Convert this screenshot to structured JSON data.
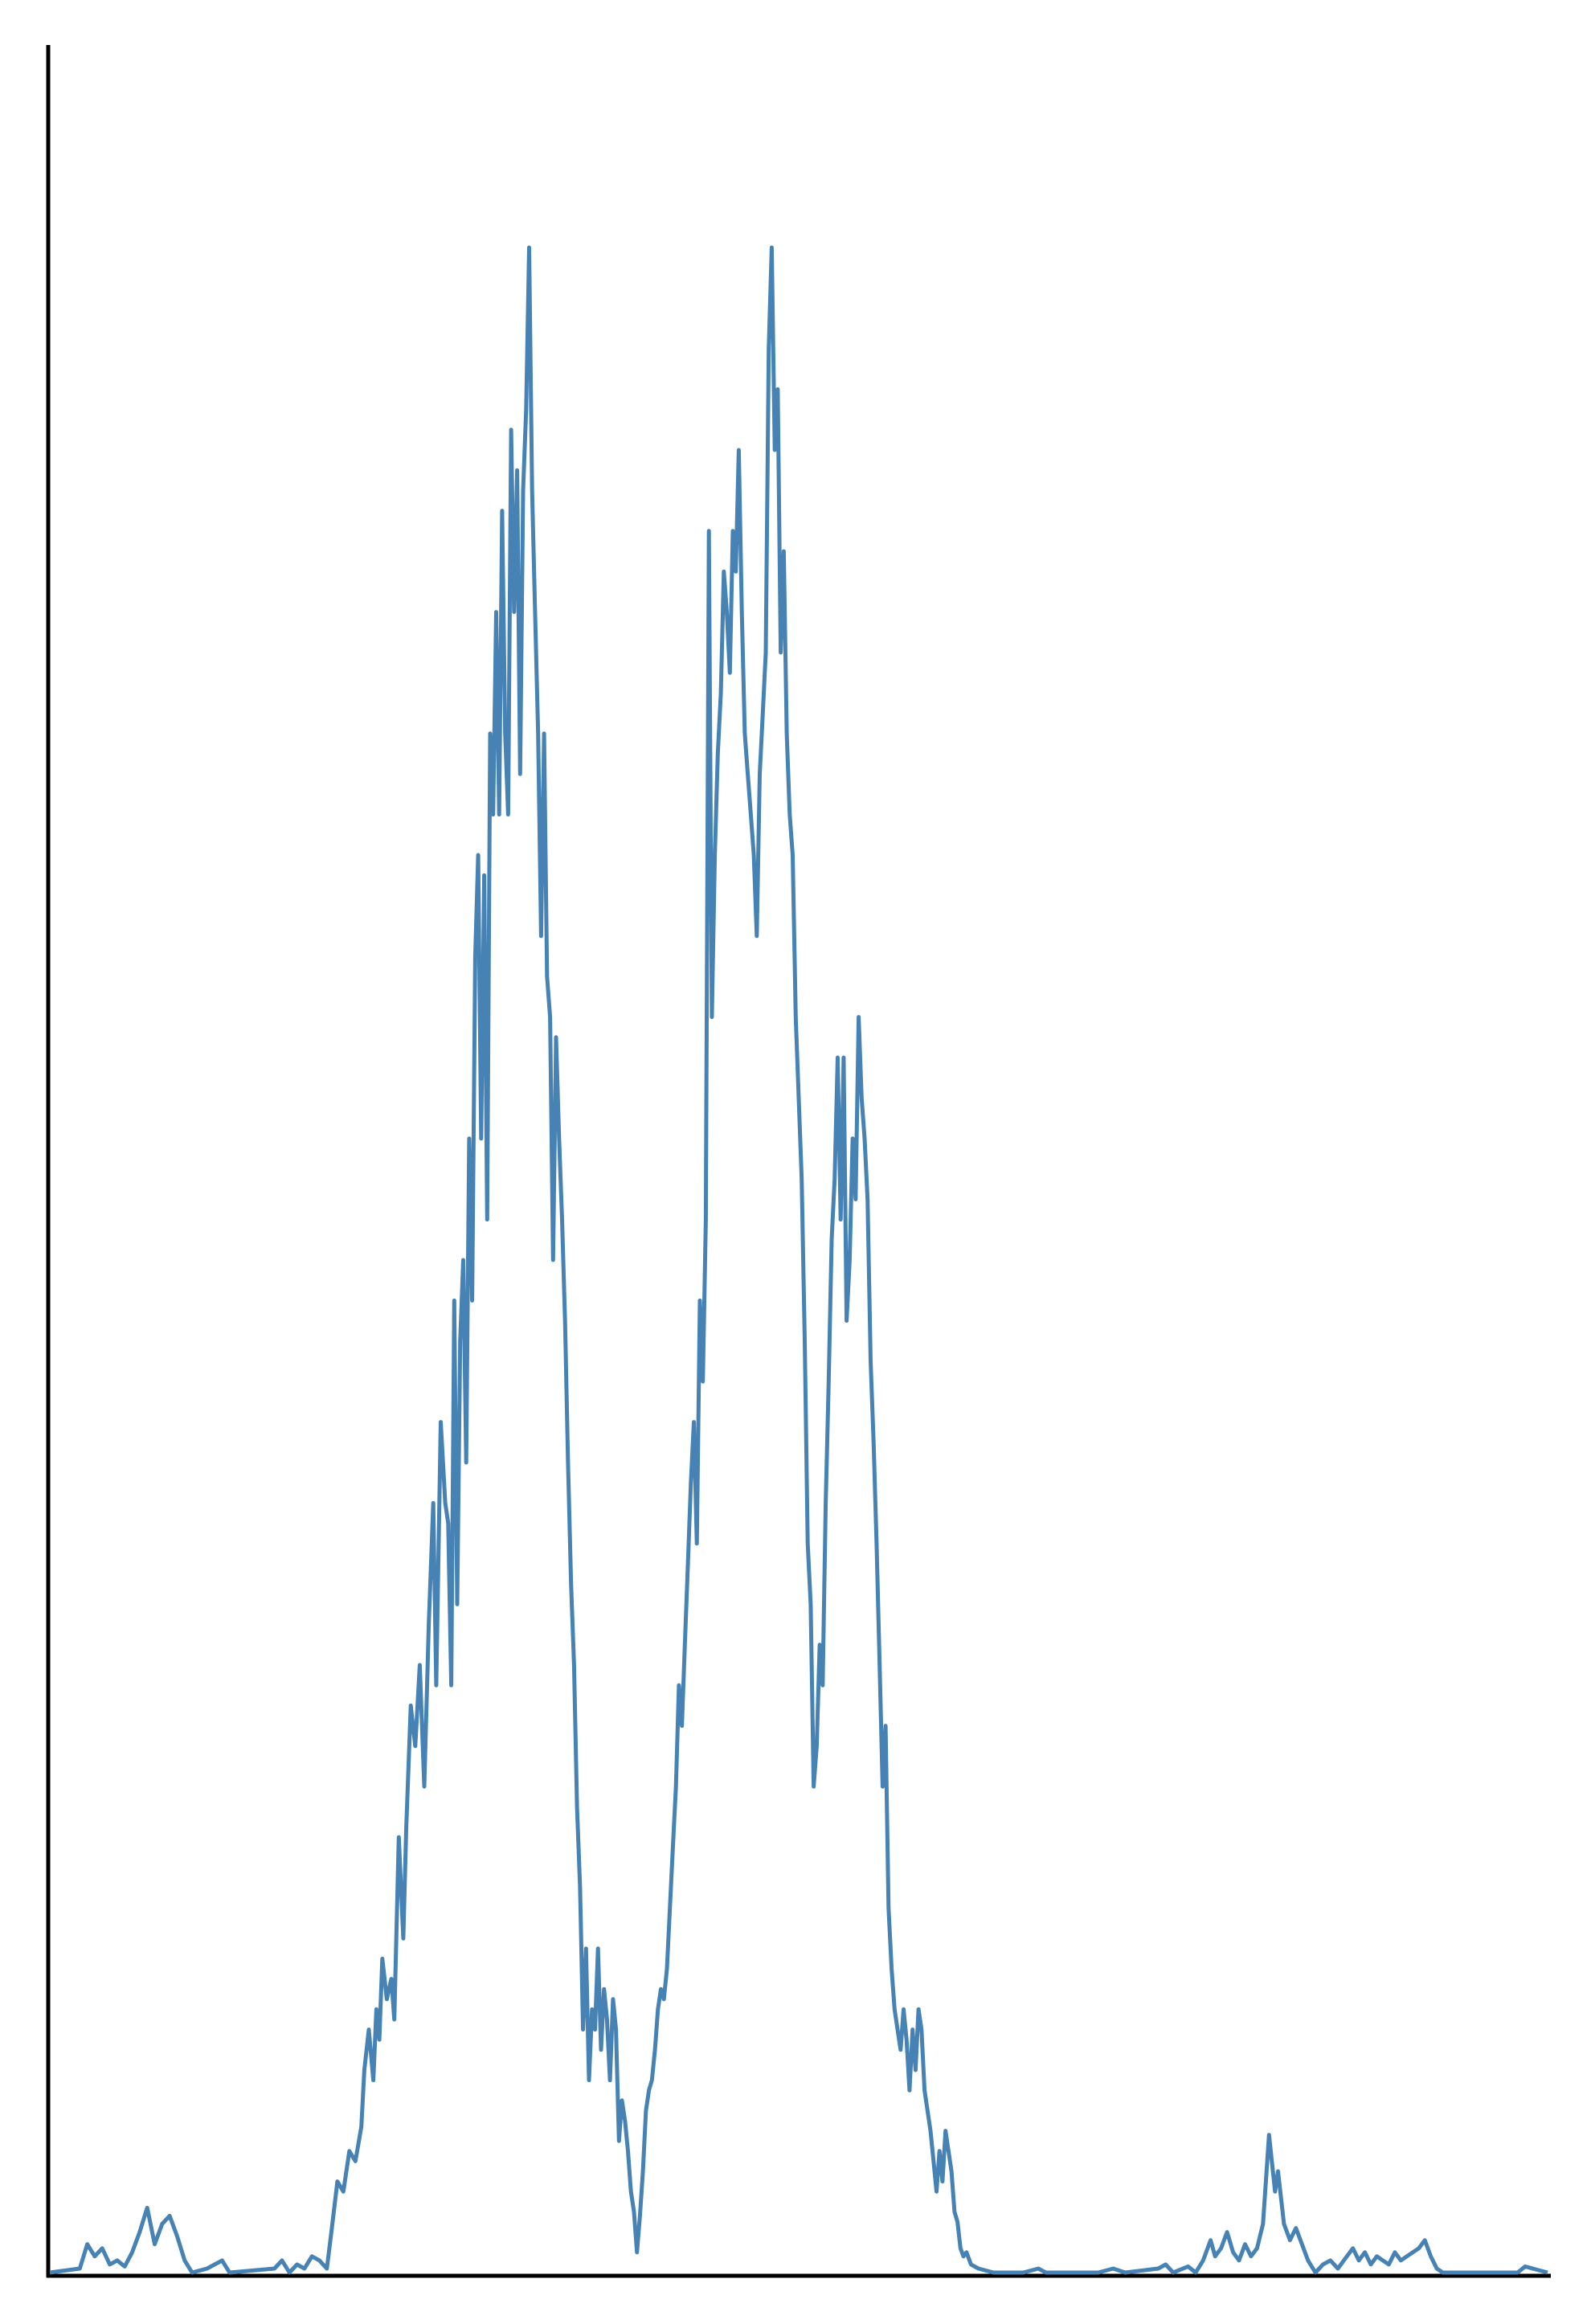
{
  "chart_data": {
    "type": "line",
    "title": "",
    "xlabel": "",
    "ylabel": "",
    "x_range": [
      0,
      1000
    ],
    "y_range": [
      0,
      1000
    ],
    "grid": false,
    "legend": "none",
    "series": [
      {
        "color": "#4682b4",
        "points": [
          [
            0,
            0
          ],
          [
            20,
            2
          ],
          [
            25,
            14
          ],
          [
            30,
            8
          ],
          [
            35,
            12
          ],
          [
            40,
            4
          ],
          [
            45,
            6
          ],
          [
            50,
            3
          ],
          [
            55,
            10
          ],
          [
            60,
            20
          ],
          [
            65,
            32
          ],
          [
            70,
            14
          ],
          [
            75,
            24
          ],
          [
            80,
            28
          ],
          [
            85,
            18
          ],
          [
            90,
            6
          ],
          [
            95,
            0
          ],
          [
            105,
            2
          ],
          [
            115,
            6
          ],
          [
            120,
            0
          ],
          [
            150,
            2
          ],
          [
            155,
            6
          ],
          [
            160,
            0
          ],
          [
            165,
            4
          ],
          [
            170,
            2
          ],
          [
            175,
            8
          ],
          [
            180,
            6
          ],
          [
            185,
            2
          ],
          [
            188,
            20
          ],
          [
            192,
            45
          ],
          [
            196,
            40
          ],
          [
            200,
            60
          ],
          [
            204,
            55
          ],
          [
            208,
            72
          ],
          [
            210,
            100
          ],
          [
            213,
            120
          ],
          [
            216,
            95
          ],
          [
            218,
            130
          ],
          [
            220,
            115
          ],
          [
            222,
            155
          ],
          [
            225,
            135
          ],
          [
            228,
            145
          ],
          [
            230,
            125
          ],
          [
            233,
            215
          ],
          [
            236,
            165
          ],
          [
            238,
            220
          ],
          [
            241,
            280
          ],
          [
            244,
            260
          ],
          [
            247,
            300
          ],
          [
            250,
            240
          ],
          [
            253,
            320
          ],
          [
            256,
            380
          ],
          [
            258,
            290
          ],
          [
            261,
            420
          ],
          [
            264,
            380
          ],
          [
            266,
            370
          ],
          [
            268,
            290
          ],
          [
            270,
            480
          ],
          [
            272,
            330
          ],
          [
            274,
            460
          ],
          [
            276,
            500
          ],
          [
            278,
            400
          ],
          [
            280,
            560
          ],
          [
            282,
            480
          ],
          [
            284,
            650
          ],
          [
            286,
            700
          ],
          [
            288,
            560
          ],
          [
            290,
            690
          ],
          [
            292,
            520
          ],
          [
            294,
            760
          ],
          [
            296,
            720
          ],
          [
            298,
            820
          ],
          [
            300,
            720
          ],
          [
            302,
            870
          ],
          [
            304,
            760
          ],
          [
            306,
            720
          ],
          [
            308,
            910
          ],
          [
            310,
            820
          ],
          [
            312,
            890
          ],
          [
            314,
            740
          ],
          [
            316,
            880
          ],
          [
            318,
            920
          ],
          [
            320,
            1000
          ],
          [
            322,
            880
          ],
          [
            324,
            820
          ],
          [
            326,
            760
          ],
          [
            328,
            660
          ],
          [
            330,
            760
          ],
          [
            332,
            640
          ],
          [
            334,
            620
          ],
          [
            336,
            500
          ],
          [
            338,
            610
          ],
          [
            340,
            560
          ],
          [
            342,
            520
          ],
          [
            344,
            470
          ],
          [
            346,
            400
          ],
          [
            348,
            340
          ],
          [
            350,
            300
          ],
          [
            352,
            230
          ],
          [
            354,
            190
          ],
          [
            356,
            120
          ],
          [
            358,
            160
          ],
          [
            360,
            95
          ],
          [
            362,
            130
          ],
          [
            364,
            120
          ],
          [
            366,
            160
          ],
          [
            368,
            110
          ],
          [
            370,
            140
          ],
          [
            372,
            125
          ],
          [
            374,
            95
          ],
          [
            376,
            135
          ],
          [
            378,
            120
          ],
          [
            380,
            65
          ],
          [
            382,
            85
          ],
          [
            384,
            75
          ],
          [
            386,
            60
          ],
          [
            388,
            40
          ],
          [
            390,
            30
          ],
          [
            392,
            10
          ],
          [
            394,
            28
          ],
          [
            396,
            50
          ],
          [
            398,
            80
          ],
          [
            400,
            90
          ],
          [
            402,
            95
          ],
          [
            404,
            110
          ],
          [
            406,
            130
          ],
          [
            408,
            140
          ],
          [
            410,
            135
          ],
          [
            412,
            150
          ],
          [
            414,
            180
          ],
          [
            416,
            210
          ],
          [
            418,
            240
          ],
          [
            420,
            290
          ],
          [
            422,
            270
          ],
          [
            424,
            310
          ],
          [
            426,
            350
          ],
          [
            428,
            390
          ],
          [
            430,
            420
          ],
          [
            432,
            360
          ],
          [
            434,
            480
          ],
          [
            436,
            440
          ],
          [
            438,
            520
          ],
          [
            440,
            860
          ],
          [
            442,
            620
          ],
          [
            444,
            700
          ],
          [
            446,
            750
          ],
          [
            448,
            780
          ],
          [
            450,
            840
          ],
          [
            452,
            820
          ],
          [
            454,
            790
          ],
          [
            456,
            860
          ],
          [
            458,
            840
          ],
          [
            460,
            900
          ],
          [
            462,
            820
          ],
          [
            464,
            760
          ],
          [
            466,
            740
          ],
          [
            468,
            720
          ],
          [
            470,
            700
          ],
          [
            472,
            660
          ],
          [
            474,
            740
          ],
          [
            476,
            770
          ],
          [
            478,
            800
          ],
          [
            480,
            950
          ],
          [
            482,
            1000
          ],
          [
            484,
            900
          ],
          [
            486,
            930
          ],
          [
            488,
            800
          ],
          [
            490,
            850
          ],
          [
            492,
            760
          ],
          [
            494,
            720
          ],
          [
            496,
            700
          ],
          [
            498,
            620
          ],
          [
            500,
            580
          ],
          [
            502,
            540
          ],
          [
            504,
            460
          ],
          [
            506,
            360
          ],
          [
            508,
            330
          ],
          [
            510,
            240
          ],
          [
            512,
            260
          ],
          [
            514,
            310
          ],
          [
            516,
            290
          ],
          [
            518,
            380
          ],
          [
            520,
            440
          ],
          [
            522,
            510
          ],
          [
            524,
            540
          ],
          [
            526,
            600
          ],
          [
            528,
            520
          ],
          [
            530,
            600
          ],
          [
            532,
            470
          ],
          [
            534,
            500
          ],
          [
            536,
            560
          ],
          [
            538,
            530
          ],
          [
            540,
            620
          ],
          [
            542,
            580
          ],
          [
            544,
            560
          ],
          [
            546,
            530
          ],
          [
            548,
            450
          ],
          [
            550,
            410
          ],
          [
            552,
            360
          ],
          [
            554,
            300
          ],
          [
            556,
            240
          ],
          [
            558,
            270
          ],
          [
            560,
            180
          ],
          [
            562,
            150
          ],
          [
            564,
            130
          ],
          [
            566,
            120
          ],
          [
            568,
            110
          ],
          [
            570,
            130
          ],
          [
            572,
            115
          ],
          [
            574,
            90
          ],
          [
            576,
            120
          ],
          [
            578,
            100
          ],
          [
            580,
            130
          ],
          [
            582,
            120
          ],
          [
            584,
            90
          ],
          [
            586,
            80
          ],
          [
            588,
            70
          ],
          [
            590,
            55
          ],
          [
            592,
            40
          ],
          [
            594,
            60
          ],
          [
            596,
            45
          ],
          [
            598,
            70
          ],
          [
            600,
            60
          ],
          [
            602,
            50
          ],
          [
            604,
            30
          ],
          [
            606,
            25
          ],
          [
            608,
            12
          ],
          [
            610,
            8
          ],
          [
            612,
            10
          ],
          [
            615,
            4
          ],
          [
            620,
            2
          ],
          [
            630,
            0
          ],
          [
            650,
            0
          ],
          [
            660,
            2
          ],
          [
            665,
            0
          ],
          [
            700,
            0
          ],
          [
            710,
            2
          ],
          [
            718,
            0
          ],
          [
            740,
            2
          ],
          [
            745,
            4
          ],
          [
            750,
            0
          ],
          [
            760,
            3
          ],
          [
            765,
            0
          ],
          [
            770,
            6
          ],
          [
            775,
            16
          ],
          [
            778,
            8
          ],
          [
            782,
            12
          ],
          [
            786,
            20
          ],
          [
            790,
            10
          ],
          [
            794,
            6
          ],
          [
            798,
            14
          ],
          [
            802,
            8
          ],
          [
            806,
            12
          ],
          [
            810,
            24
          ],
          [
            814,
            68
          ],
          [
            818,
            40
          ],
          [
            820,
            50
          ],
          [
            824,
            24
          ],
          [
            828,
            16
          ],
          [
            832,
            22
          ],
          [
            836,
            14
          ],
          [
            840,
            6
          ],
          [
            845,
            0
          ],
          [
            850,
            4
          ],
          [
            855,
            6
          ],
          [
            860,
            2
          ],
          [
            866,
            8
          ],
          [
            870,
            12
          ],
          [
            874,
            6
          ],
          [
            878,
            10
          ],
          [
            882,
            4
          ],
          [
            886,
            8
          ],
          [
            890,
            6
          ],
          [
            894,
            4
          ],
          [
            898,
            10
          ],
          [
            902,
            6
          ],
          [
            906,
            8
          ],
          [
            910,
            10
          ],
          [
            914,
            12
          ],
          [
            918,
            16
          ],
          [
            922,
            8
          ],
          [
            926,
            2
          ],
          [
            930,
            0
          ],
          [
            980,
            0
          ],
          [
            985,
            3
          ],
          [
            990,
            2
          ],
          [
            995,
            1
          ],
          [
            1000,
            0
          ]
        ]
      }
    ]
  }
}
